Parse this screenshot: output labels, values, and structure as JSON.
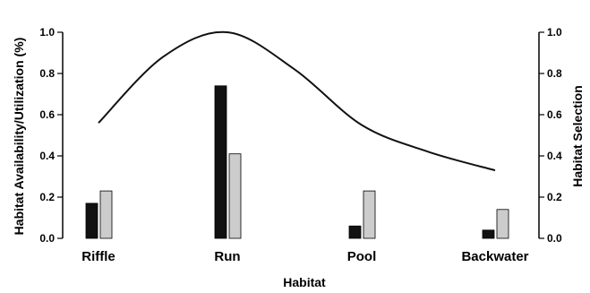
{
  "chart_data": {
    "type": "bar",
    "categories": [
      "Riffle",
      "Run",
      "Pool",
      "Backwater"
    ],
    "series": [
      {
        "values": [
          0.17,
          0.74,
          0.06,
          0.04
        ],
        "color": "#111111",
        "axis": "left"
      },
      {
        "values": [
          0.23,
          0.41,
          0.23,
          0.14
        ],
        "color": "#cccccc",
        "axis": "left"
      }
    ],
    "line": {
      "axis": "right",
      "color": "#111111",
      "x": [
        0,
        0.5,
        1,
        1.5,
        2,
        2.5,
        3
      ],
      "y": [
        0.56,
        0.88,
        1.0,
        0.82,
        0.55,
        0.42,
        0.33
      ]
    },
    "xlabel": "Habitat",
    "ylabel_left": "Habitat Availability/Utilization (%)",
    "ylabel_right": "Habitat Selection",
    "ylim_left": [
      0,
      1.0
    ],
    "ylim_right": [
      0,
      1.0
    ],
    "yticks_left": [
      "0.0",
      "0.2",
      "0.4",
      "0.6",
      "0.8",
      "1.0"
    ],
    "yticks_right": [
      "0.0",
      "0.2",
      "0.4",
      "0.6",
      "0.8",
      "1.0"
    ],
    "grid": false,
    "legend": "none"
  }
}
